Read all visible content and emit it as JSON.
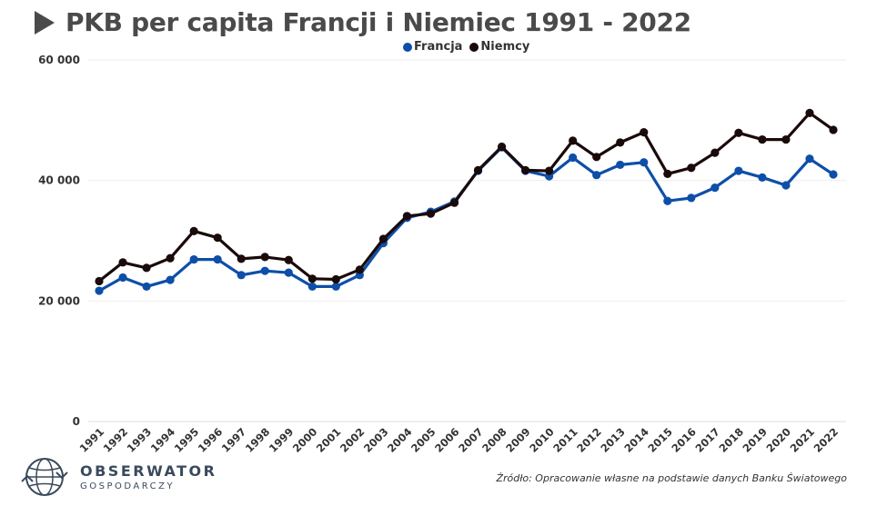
{
  "header": {
    "title": "PKB per capita Francji i Niemiec 1991 - 2022"
  },
  "colors": {
    "francja": "#0d4fa8",
    "niemcy": "#1a0a0a",
    "grid": "#eeeeee",
    "axis": "#333333"
  },
  "chart_data": {
    "type": "line",
    "title": "PKB per capita Francji i Niemiec 1991 - 2022",
    "x": [
      "1991",
      "1992",
      "1993",
      "1994",
      "1995",
      "1996",
      "1997",
      "1998",
      "1999",
      "2000",
      "2001",
      "2002",
      "2003",
      "2004",
      "2005",
      "2006",
      "2007",
      "2008",
      "2009",
      "2010",
      "2011",
      "2012",
      "2013",
      "2014",
      "2015",
      "2016",
      "2017",
      "2018",
      "2019",
      "2020",
      "2021",
      "2022"
    ],
    "ylim": [
      0,
      60000
    ],
    "yticks": [
      0,
      20000,
      40000,
      60000
    ],
    "ytick_labels": [
      "0",
      "20 000",
      "40 000",
      "60 000"
    ],
    "grid": true,
    "legend_position": "top-center",
    "series": [
      {
        "name": "Francja",
        "color": "#0d4fa8",
        "values": [
          21700,
          23900,
          22400,
          23500,
          26900,
          26900,
          24300,
          25000,
          24700,
          22400,
          22400,
          24300,
          29600,
          33800,
          34800,
          36500,
          41600,
          45500,
          41600,
          40700,
          43800,
          40900,
          42600,
          43000,
          36600,
          37100,
          38800,
          41600,
          40500,
          39200,
          43600,
          41000
        ]
      },
      {
        "name": "Niemcy",
        "color": "#1a0a0a",
        "values": [
          23300,
          26400,
          25500,
          27100,
          31600,
          30500,
          27000,
          27300,
          26800,
          23700,
          23600,
          25200,
          30300,
          34100,
          34500,
          36300,
          41700,
          45600,
          41700,
          41600,
          46600,
          43900,
          46300,
          48000,
          41100,
          42100,
          44600,
          47900,
          46800,
          46800,
          51200,
          48400
        ]
      }
    ]
  },
  "source": {
    "text": "Źródło: Opracowanie własne na podstawie danych Banku Światowego"
  },
  "logo": {
    "main": "OBSERWATOR",
    "sub": "GOSPODARCZY"
  }
}
